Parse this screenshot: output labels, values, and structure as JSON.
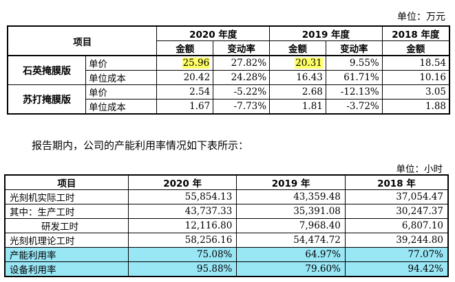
{
  "table1": {
    "unit": "单位：万元",
    "header": {
      "item": "项目",
      "years": [
        "2020 年度",
        "2019 年度",
        "2018 年度"
      ],
      "amount": "金额",
      "change": "变动率"
    },
    "products": [
      {
        "name": "石英掩膜版",
        "rows": [
          {
            "label": "单价",
            "v2020": "25.96",
            "c2020": "27.82%",
            "v2019": "20.31",
            "c2019": "9.55%",
            "v2018": "18.54"
          },
          {
            "label": "单位成本",
            "v2020": "20.42",
            "c2020": "24.28%",
            "v2019": "16.43",
            "c2019": "61.71%",
            "v2018": "10.16"
          }
        ]
      },
      {
        "name": "苏打掩膜版",
        "rows": [
          {
            "label": "单价",
            "v2020": "2.54",
            "c2020": "-5.22%",
            "v2019": "2.68",
            "c2019": "-12.13%",
            "v2018": "3.05"
          },
          {
            "label": "单位成本",
            "v2020": "1.67",
            "c2020": "-7.73%",
            "v2019": "1.81",
            "c2019": "-3.72%",
            "v2018": "1.88"
          }
        ]
      }
    ]
  },
  "paragraph": "报告期内，公司的产能利用率情况如下表所示：",
  "table2": {
    "unit": "单位：小时",
    "header": {
      "item": "项目",
      "y2020": "2020 年",
      "y2019": "2019 年",
      "y2018": "2018 年"
    },
    "rows": [
      {
        "label": "光刻机实际工时",
        "v2020": "55,854.13",
        "v2019": "43,359.48",
        "v2018": "37,054.47"
      },
      {
        "label": "其中：生产工时",
        "v2020": "43,737.33",
        "v2019": "35,391.08",
        "v2018": "30,247.37"
      },
      {
        "label": "研发工时",
        "v2020": "12,116.80",
        "v2019": "7,968.40",
        "v2018": "6,807.10"
      },
      {
        "label": "光刻机理论工时",
        "v2020": "58,256.16",
        "v2019": "54,474.72",
        "v2018": "39,244.80"
      },
      {
        "label": "产能利用率",
        "v2020": "75.08%",
        "v2019": "64.97%",
        "v2018": "77.07%"
      },
      {
        "label": "设备利用率",
        "v2020": "95.88%",
        "v2019": "79.60%",
        "v2018": "94.42%"
      }
    ]
  },
  "colors": {
    "highlight": "#ffff66",
    "cyan_row": "#99e6f5"
  }
}
